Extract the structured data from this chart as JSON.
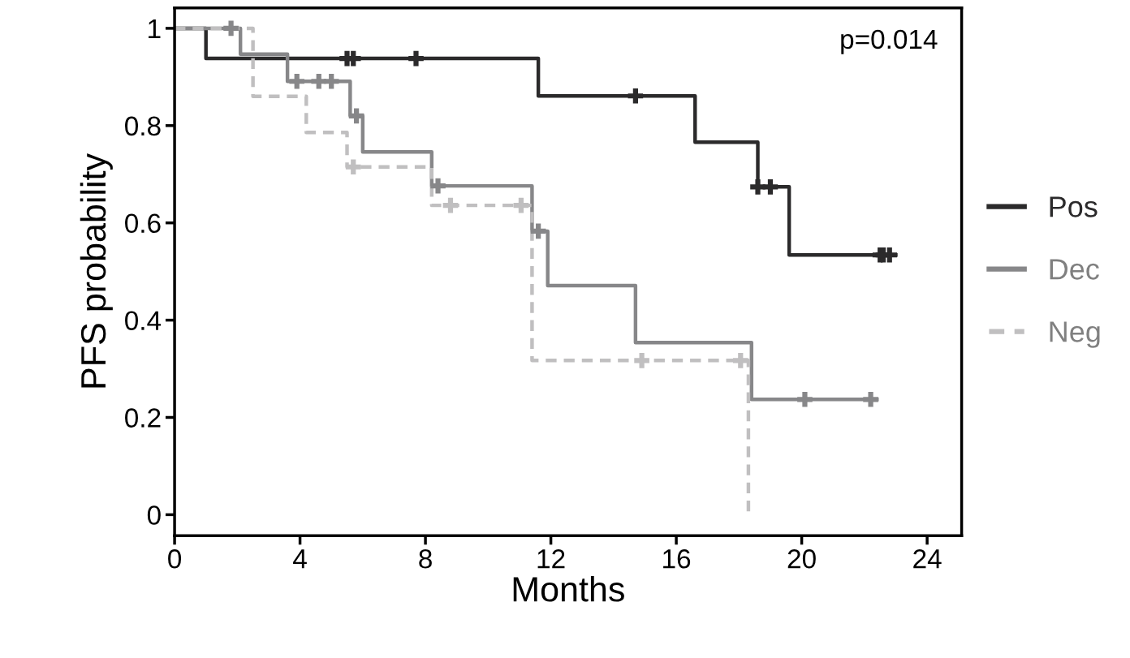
{
  "chart_data": {
    "type": "step",
    "xlabel": "Months",
    "ylabel": "PFS probability",
    "annotations": [
      "p=0.014"
    ],
    "xlim": [
      0,
      25.1
    ],
    "ylim": [
      -0.043,
      1.042
    ],
    "xticks": [
      0,
      4,
      8,
      12,
      16,
      20,
      24
    ],
    "yticks": [
      0,
      0.2,
      0.4,
      0.6,
      0.8,
      1
    ],
    "grid": false,
    "legend": "right",
    "series": [
      {
        "name": "Pos",
        "color": "#2b2a2b",
        "line_style": "solid",
        "x": [
          0,
          1.0,
          11.6,
          16.6,
          18.6,
          19.6,
          23.0
        ],
        "values": [
          1,
          0.938,
          0.861,
          0.766,
          0.674,
          0.534,
          0.534
        ]
      },
      {
        "name": "Dec",
        "color": "#878789",
        "line_style": "solid",
        "x": [
          0,
          2.1,
          3.6,
          5.6,
          6.0,
          8.2,
          11.4,
          11.9,
          14.7,
          18.4,
          22.4
        ],
        "values": [
          1,
          0.947,
          0.891,
          0.82,
          0.746,
          0.676,
          0.583,
          0.471,
          0.354,
          0.237,
          0.237
        ]
      },
      {
        "name": "Neg",
        "color": "#c0bfc0",
        "line_style": "dashed",
        "x": [
          0,
          2.5,
          4.2,
          5.5,
          8.2,
          11.4,
          18.3,
          18.4
        ],
        "values": [
          1,
          0.86,
          0.786,
          0.715,
          0.636,
          0.317,
          0,
          0
        ]
      },
      {
        "type": "scatter",
        "marker": "cross",
        "color": "#2b2a2b",
        "x": [
          5.5,
          5.7,
          7.7,
          14.7,
          18.6,
          19.0,
          22.5,
          22.6,
          22.8
        ],
        "values": [
          0.938,
          0.938,
          0.938,
          0.861,
          0.674,
          0.674,
          0.534,
          0.534,
          0.534
        ]
      },
      {
        "type": "scatter",
        "marker": "cross",
        "color": "#878789",
        "x": [
          1.8,
          3.9,
          4.6,
          5.0,
          5.8,
          8.4,
          11.6,
          20.1,
          22.2
        ],
        "values": [
          1,
          0.891,
          0.891,
          0.891,
          0.82,
          0.676,
          0.583,
          0.237,
          0.237
        ]
      },
      {
        "type": "scatter",
        "marker": "cross",
        "color": "#c0bfc0",
        "x": [
          5.7,
          8.8,
          11.05,
          14.9,
          18.05
        ],
        "values": [
          0.715,
          0.636,
          0.636,
          0.317,
          0.317
        ]
      }
    ]
  }
}
